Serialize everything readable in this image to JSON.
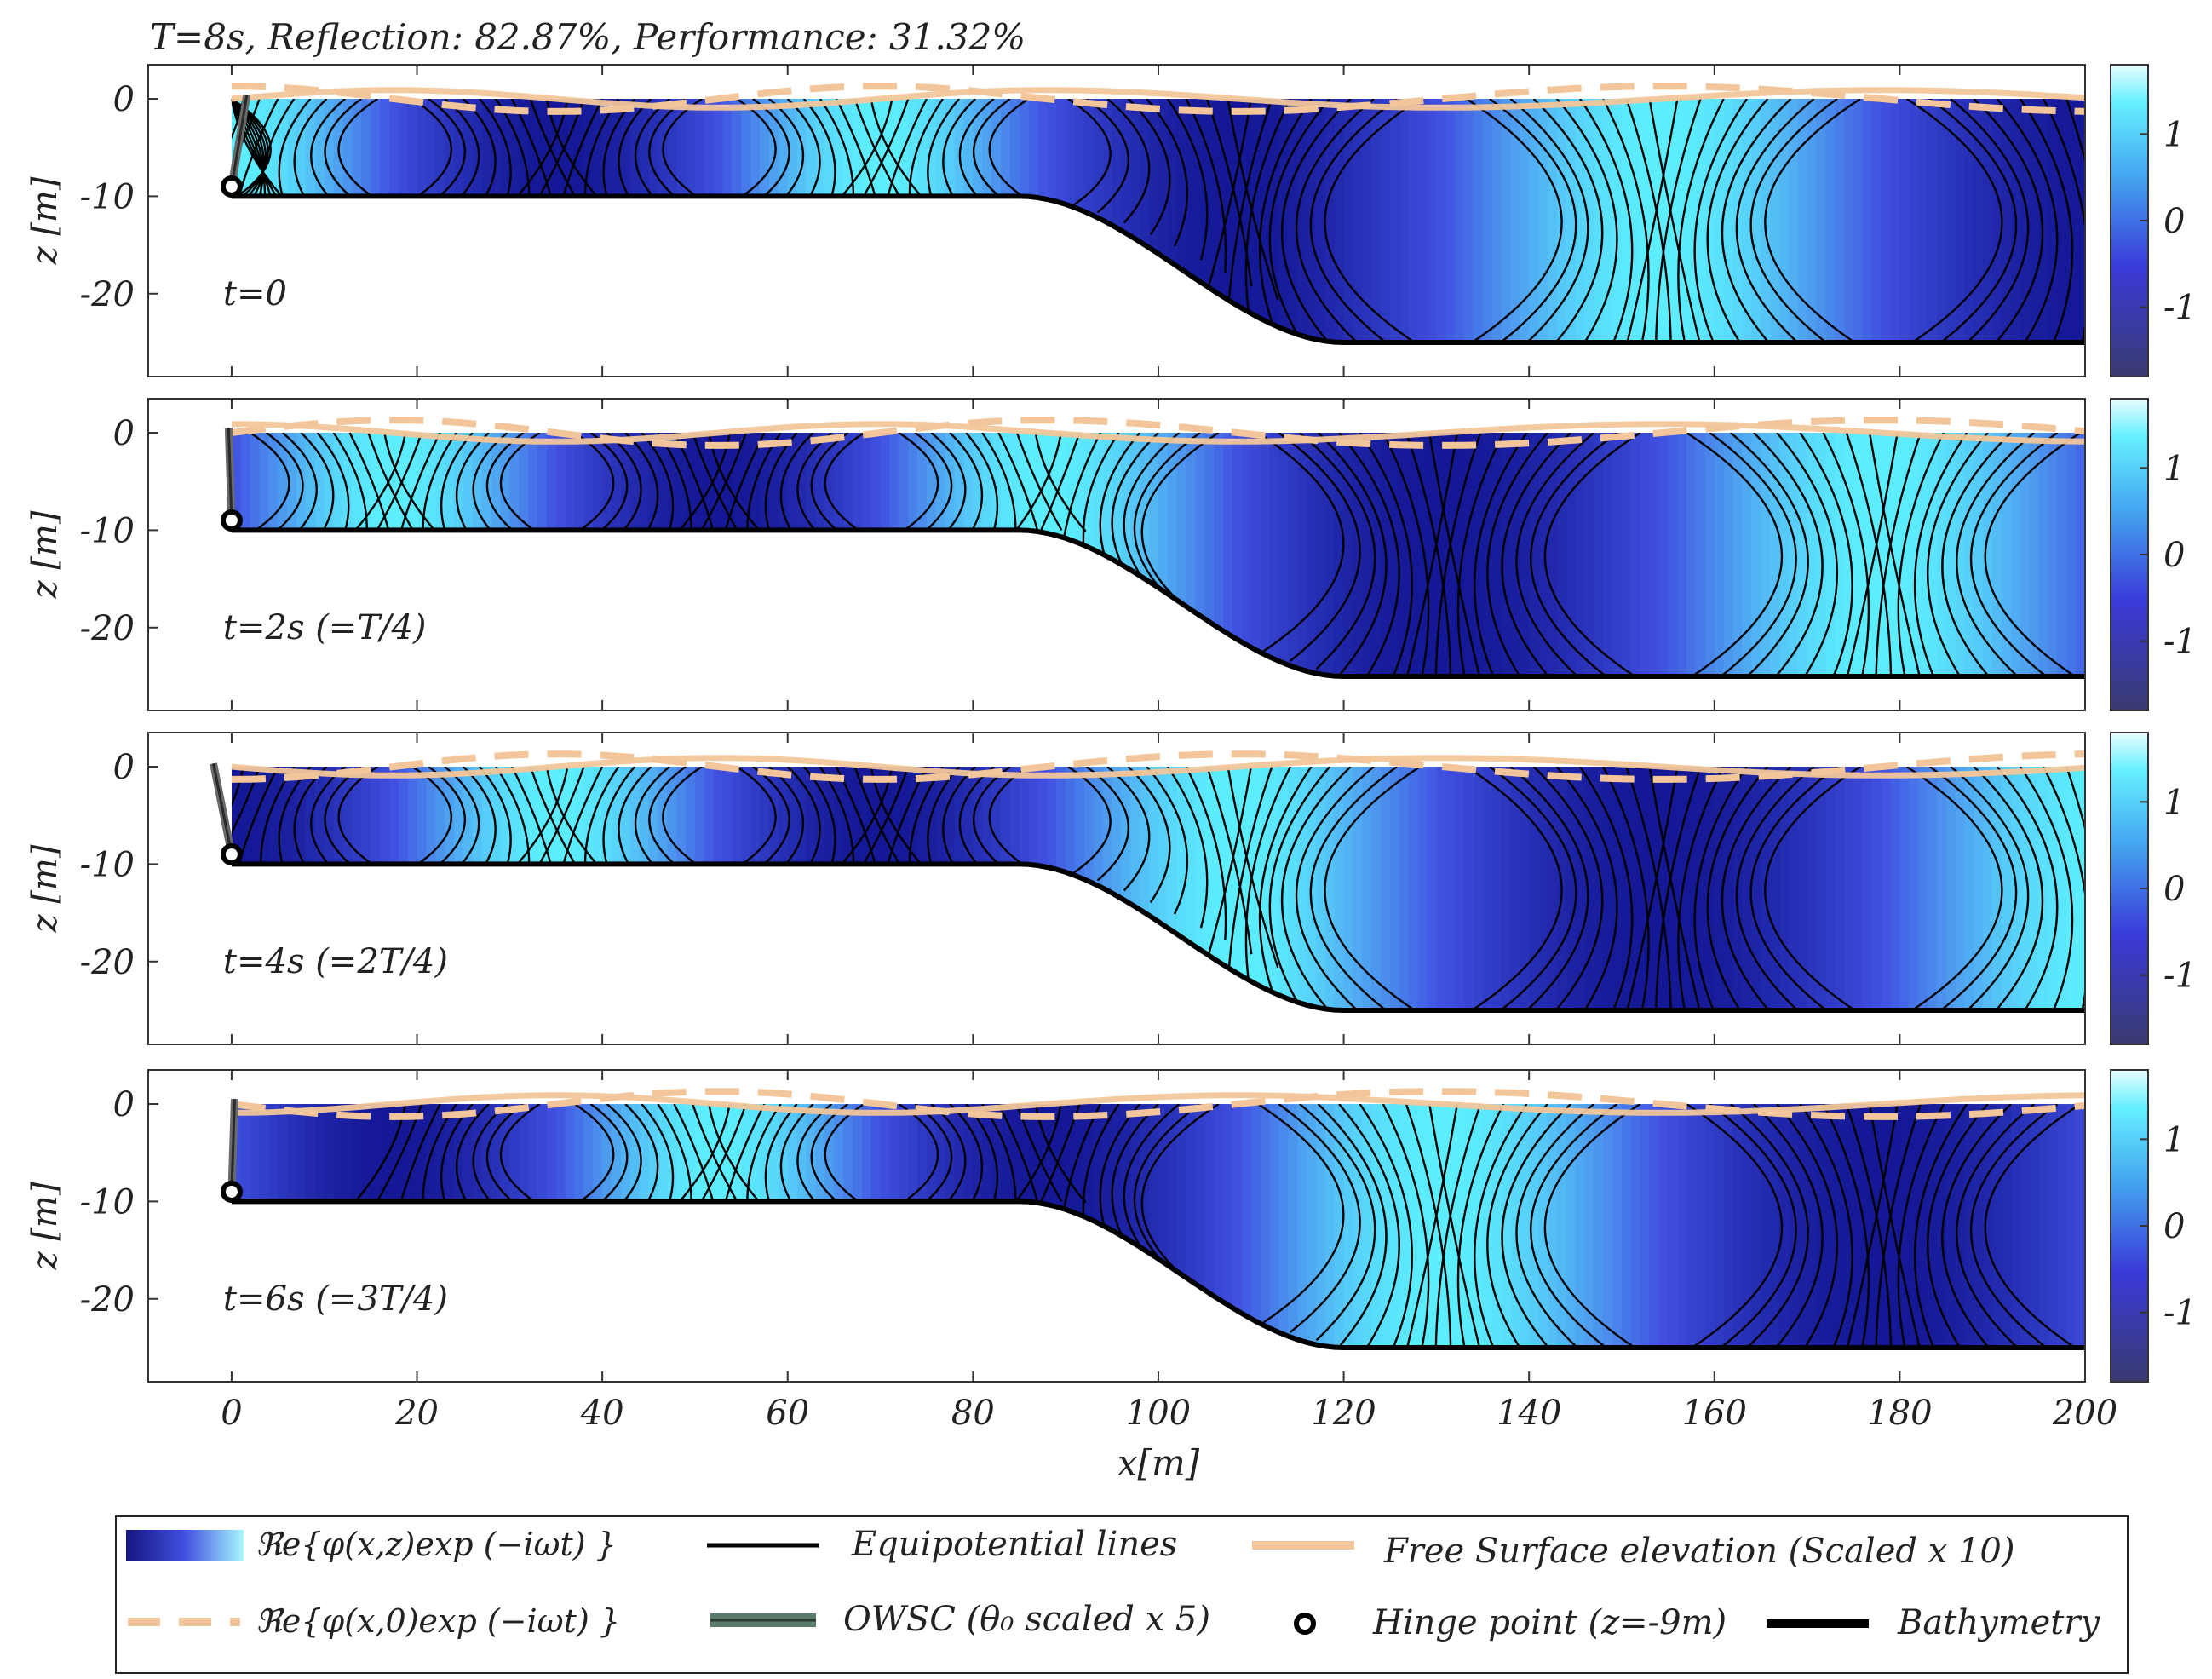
{
  "chart_data": {
    "type": "contour",
    "title": "T=8s, Reflection: 82.87%, Performance: 31.32%",
    "params": {
      "period_s": 8,
      "reflection_pct": 82.87,
      "performance_pct": 31.32
    },
    "xlabel": "x[m]",
    "ylabel": "z [m]",
    "xlim": [
      -9,
      200
    ],
    "ylim": [
      -28.5,
      3.5
    ],
    "xticks": [
      0,
      20,
      40,
      60,
      80,
      100,
      120,
      140,
      160,
      180,
      200
    ],
    "yticks": [
      0,
      -10,
      -20
    ],
    "colorbar": {
      "ticks": [
        1,
        0,
        -1
      ],
      "range": [
        -1.8,
        1.8
      ]
    },
    "bathymetry": {
      "shallow_depth": -10,
      "deep_depth": -25,
      "slope_start_x": 85,
      "slope_end_x": 120,
      "end_x": 200
    },
    "hinge": {
      "x": 0,
      "z": -9
    },
    "wavelengths_m": {
      "shallow": 70,
      "deep": 95
    },
    "panels": [
      {
        "label": "t=0",
        "t_s": 0,
        "owsc_angle_deg": -10,
        "eta_sign": 1,
        "phase_shift": 0
      },
      {
        "label": "t=2s (=T/4)",
        "t_s": 2,
        "owsc_angle_deg": 2,
        "eta_sign": -1,
        "phase_shift": 0.25
      },
      {
        "label": "t=4s (=2T/4)",
        "t_s": 4,
        "owsc_angle_deg": 12,
        "eta_sign": 1,
        "phase_shift": 0.5
      },
      {
        "label": "t=6s (=3T/4)",
        "t_s": 6,
        "owsc_angle_deg": -2,
        "eta_sign": -1,
        "phase_shift": 0.75
      }
    ],
    "legend": {
      "potential": "ℜe{φ(x,z)exp (−iωt) }",
      "equipotential": "Equipotential lines",
      "free_surface": "Free Surface elevation (Scaled x 10)",
      "surface_potential": "ℜe{φ(x,0)exp (−iωt) }",
      "owsc": "OWSC (θ₀ scaled x 5)",
      "hinge": "Hinge point (z=-9m)",
      "bathymetry": "Bathymetry"
    },
    "colors": {
      "cmap_low": "#0a0a8c",
      "cmap_mid": "#4040e0",
      "cmap_high": "#5ff0ff",
      "free_surface": "#f2c69a",
      "owsc": "#5a7a6a",
      "contour": "#000000",
      "bathymetry": "#000000"
    }
  }
}
